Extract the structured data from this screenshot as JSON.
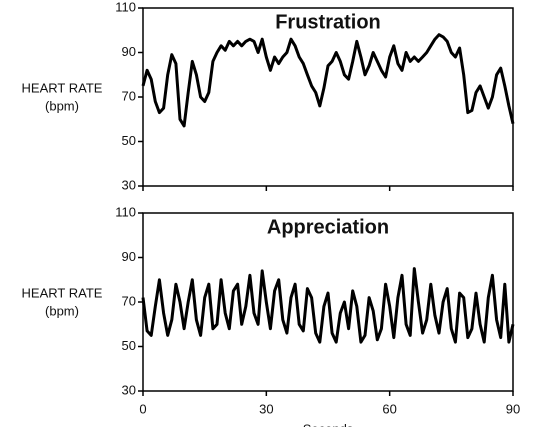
{
  "chart_data": [
    {
      "type": "line",
      "title": "Frustration",
      "ylabel": [
        "HEART RATE",
        "(bpm)"
      ],
      "color": "#000000",
      "x": [
        0,
        1,
        2,
        3,
        4,
        5,
        6,
        7,
        8,
        9,
        10,
        11,
        12,
        13,
        14,
        15,
        16,
        17,
        18,
        19,
        20,
        21,
        22,
        23,
        24,
        25,
        26,
        27,
        28,
        29,
        30,
        31,
        32,
        33,
        34,
        35,
        36,
        37,
        38,
        39,
        40,
        41,
        42,
        43,
        44,
        45,
        46,
        47,
        48,
        49,
        50,
        51,
        52,
        53,
        54,
        55,
        56,
        57,
        58,
        59,
        60,
        61,
        62,
        63,
        64,
        65,
        66,
        67,
        68,
        69,
        70,
        71,
        72,
        73,
        74,
        75,
        76,
        77,
        78,
        79,
        80,
        81,
        82,
        83,
        84,
        85,
        86,
        87,
        88,
        89,
        90
      ],
      "values": [
        75,
        82,
        78,
        68,
        63,
        65,
        80,
        89,
        85,
        60,
        57,
        72,
        86,
        80,
        70,
        68,
        72,
        86,
        90,
        93,
        91,
        95,
        93,
        95,
        93,
        95,
        96,
        95,
        90,
        96,
        88,
        82,
        88,
        85,
        88,
        90,
        96,
        93,
        88,
        85,
        80,
        75,
        72,
        66,
        74,
        84,
        86,
        90,
        86,
        80,
        78,
        86,
        95,
        88,
        80,
        84,
        90,
        86,
        82,
        79,
        88,
        93,
        85,
        82,
        90,
        86,
        88,
        86,
        88,
        90,
        93,
        96,
        98,
        97,
        95,
        90,
        88,
        92,
        80,
        63,
        64,
        72,
        75,
        70,
        65,
        70,
        80,
        83,
        75,
        66,
        58
      ],
      "xlim": [
        0,
        90
      ],
      "xticks": [
        0,
        30,
        60,
        90
      ],
      "show_xtick_labels": false,
      "ylim": [
        30,
        110
      ],
      "yticks": [
        30,
        50,
        70,
        90,
        110
      ]
    },
    {
      "type": "line",
      "title": "Appreciation",
      "ylabel": [
        "HEART RATE",
        "(bpm)"
      ],
      "xlabel": "Seconds",
      "color": "#000000",
      "x": [
        0,
        1,
        2,
        3,
        4,
        5,
        6,
        7,
        8,
        9,
        10,
        11,
        12,
        13,
        14,
        15,
        16,
        17,
        18,
        19,
        20,
        21,
        22,
        23,
        24,
        25,
        26,
        27,
        28,
        29,
        30,
        31,
        32,
        33,
        34,
        35,
        36,
        37,
        38,
        39,
        40,
        41,
        42,
        43,
        44,
        45,
        46,
        47,
        48,
        49,
        50,
        51,
        52,
        53,
        54,
        55,
        56,
        57,
        58,
        59,
        60,
        61,
        62,
        63,
        64,
        65,
        66,
        67,
        68,
        69,
        70,
        71,
        72,
        73,
        74,
        75,
        76,
        77,
        78,
        79,
        80,
        81,
        82,
        83,
        84,
        85,
        86,
        87,
        88,
        89,
        90
      ],
      "values": [
        72,
        57,
        55,
        68,
        80,
        65,
        55,
        62,
        78,
        70,
        58,
        70,
        80,
        62,
        55,
        72,
        78,
        58,
        60,
        80,
        65,
        58,
        75,
        78,
        60,
        68,
        82,
        65,
        60,
        84,
        70,
        58,
        75,
        80,
        62,
        56,
        72,
        78,
        60,
        57,
        76,
        72,
        56,
        52,
        68,
        74,
        56,
        52,
        65,
        70,
        58,
        75,
        68,
        52,
        55,
        72,
        66,
        53,
        58,
        78,
        68,
        54,
        72,
        82,
        60,
        55,
        85,
        70,
        56,
        62,
        78,
        64,
        56,
        70,
        76,
        58,
        52,
        74,
        72,
        54,
        58,
        74,
        60,
        52,
        72,
        82,
        62,
        54,
        78,
        52,
        60
      ],
      "xlim": [
        0,
        90
      ],
      "xticks": [
        0,
        30,
        60,
        90
      ],
      "show_xtick_labels": true,
      "ylim": [
        30,
        110
      ],
      "yticks": [
        30,
        50,
        70,
        90,
        110
      ]
    }
  ]
}
